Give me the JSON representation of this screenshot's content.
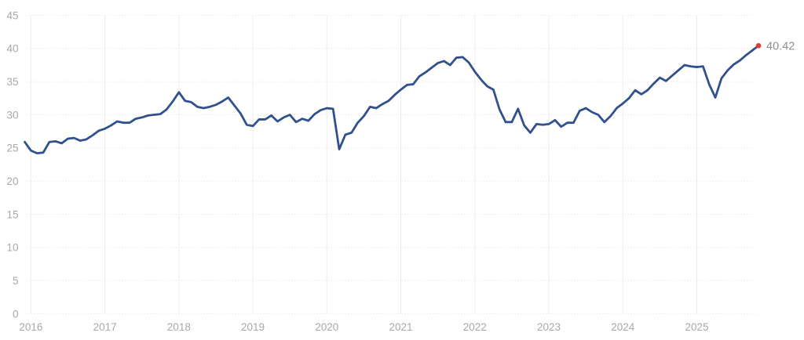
{
  "chart_data": {
    "type": "line",
    "title": "",
    "x_tick_labels": [
      "2016",
      "2017",
      "2018",
      "2019",
      "2020",
      "2021",
      "2022",
      "2023",
      "2024",
      "2025"
    ],
    "y_tick_values": [
      0,
      5,
      10,
      15,
      20,
      25,
      30,
      35,
      40,
      45
    ],
    "ylim": [
      0,
      45
    ],
    "grid": true,
    "legend": "none",
    "series": [
      {
        "name": "value",
        "frequency": "monthly",
        "start": "2015-12",
        "values": [
          25.9,
          24.6,
          24.2,
          24.3,
          25.9,
          26.0,
          25.7,
          26.4,
          26.5,
          26.1,
          26.3,
          26.9,
          27.6,
          27.9,
          28.4,
          29.0,
          28.8,
          28.8,
          29.4,
          29.6,
          29.9,
          30.0,
          30.1,
          30.8,
          32.0,
          33.4,
          32.1,
          31.9,
          31.2,
          31.0,
          31.2,
          31.5,
          32.0,
          32.6,
          31.4,
          30.2,
          28.5,
          28.3,
          29.3,
          29.3,
          29.9,
          29.0,
          29.6,
          30.0,
          28.9,
          29.4,
          29.1,
          30.1,
          30.7,
          31.0,
          30.9,
          24.8,
          27.0,
          27.3,
          28.8,
          29.8,
          31.2,
          31.0,
          31.6,
          32.1,
          33.0,
          33.8,
          34.5,
          34.6,
          35.8,
          36.4,
          37.1,
          37.8,
          38.1,
          37.5,
          38.6,
          38.7,
          37.9,
          36.5,
          35.3,
          34.3,
          33.8,
          30.8,
          28.9,
          28.9,
          30.9,
          28.4,
          27.3,
          28.6,
          28.5,
          28.6,
          29.2,
          28.2,
          28.8,
          28.8,
          30.6,
          31.0,
          30.4,
          30.0,
          28.9,
          29.8,
          31.0,
          31.7,
          32.5,
          33.7,
          33.1,
          33.7,
          34.7,
          35.6,
          35.1,
          35.9,
          36.7,
          37.5,
          37.3,
          37.2,
          37.3,
          34.6,
          32.6,
          35.5,
          36.7,
          37.6,
          38.2,
          39.0,
          39.7,
          40.42
        ]
      }
    ],
    "last_point": {
      "value": 40.42,
      "label": "40.42"
    }
  },
  "colors": {
    "line": "#31508e",
    "end_dot": "#df3a34",
    "last_label": "#8e8e8e",
    "tick_label": "#a8a8a8",
    "h_grid": "#e2e2e2",
    "v_grid": "#ededed",
    "background": "#ffffff"
  }
}
